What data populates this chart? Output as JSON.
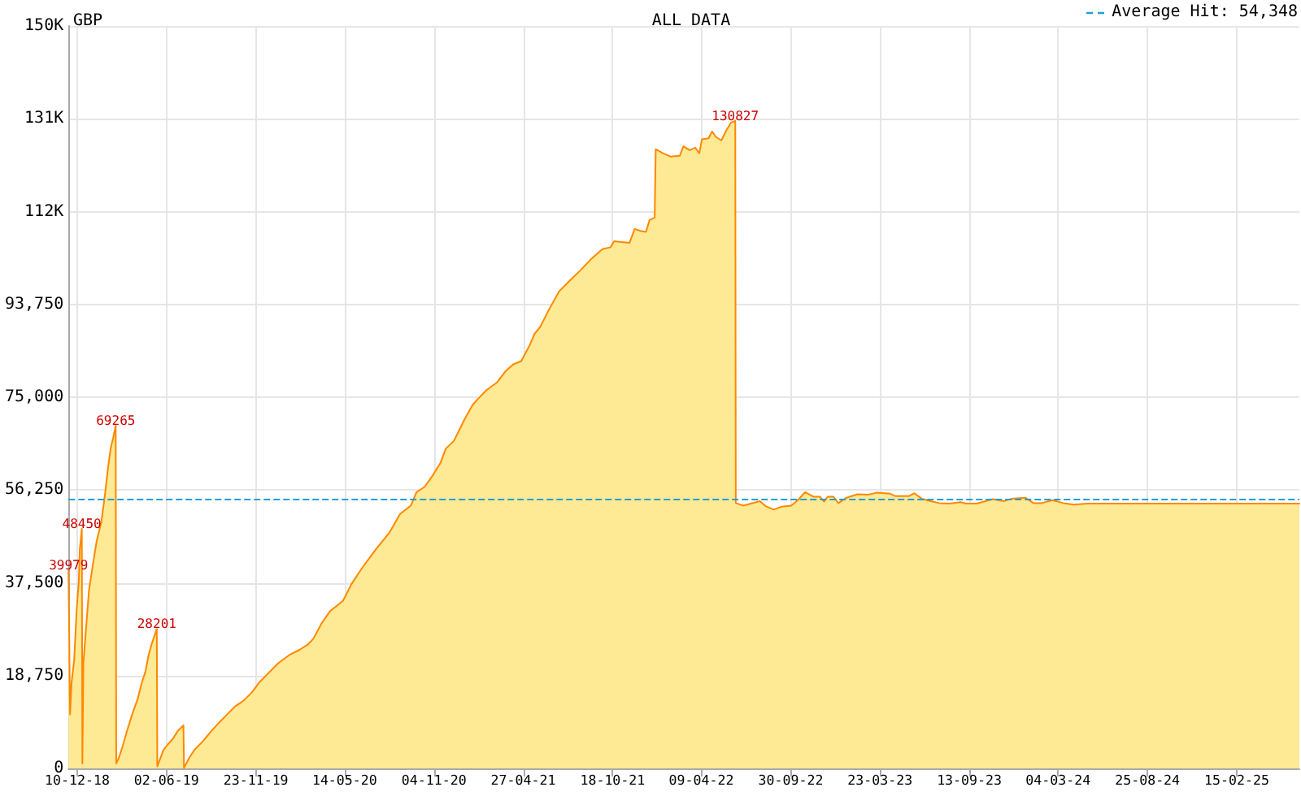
{
  "chart_data": {
    "type": "area",
    "title": "GBP",
    "subtitle": "ALL DATA",
    "x": [
      "2018-11-23",
      "2018-11-26",
      "2018-11-29",
      "2018-12-04",
      "2018-12-09",
      "2018-12-13",
      "2018-12-15",
      "2018-12-19",
      "2018-12-20",
      "2018-12-22",
      "2019-01-02",
      "2019-01-10",
      "2019-01-17",
      "2019-01-26",
      "2019-02-02",
      "2019-02-08",
      "2019-02-13",
      "2019-02-18",
      "2019-02-23",
      "2019-02-24",
      "2019-03-01",
      "2019-03-08",
      "2019-03-17",
      "2019-03-27",
      "2019-04-07",
      "2019-04-15",
      "2019-04-22",
      "2019-04-28",
      "2019-05-04",
      "2019-05-14",
      "2019-05-15",
      "2019-05-19",
      "2019-05-27",
      "2019-06-04",
      "2019-06-14",
      "2019-06-24",
      "2019-07-05",
      "2019-07-06",
      "2019-07-16",
      "2019-07-26",
      "2019-08-11",
      "2019-08-27",
      "2019-09-12",
      "2019-09-28",
      "2019-10-13",
      "2019-10-29",
      "2019-11-14",
      "2019-11-30",
      "2019-12-16",
      "2020-01-06",
      "2020-01-27",
      "2020-02-17",
      "2020-03-04",
      "2020-03-14",
      "2020-03-30",
      "2020-04-15",
      "2020-05-11",
      "2020-05-27",
      "2020-06-17",
      "2020-07-14",
      "2020-08-09",
      "2020-08-30",
      "2020-09-20",
      "2020-10-01",
      "2020-10-17",
      "2020-11-01",
      "2020-11-17",
      "2020-11-27",
      "2020-12-13",
      "2021-01-03",
      "2021-01-18",
      "2021-01-29",
      "2021-02-14",
      "2021-03-07",
      "2021-03-23",
      "2021-04-07",
      "2021-04-23",
      "2021-05-09",
      "2021-05-19",
      "2021-05-30",
      "2021-06-15",
      "2021-07-06",
      "2021-07-27",
      "2021-08-17",
      "2021-09-07",
      "2021-09-28",
      "2021-10-14",
      "2021-10-21",
      "2021-11-20",
      "2021-11-30",
      "2021-12-11",
      "2021-12-22",
      "2021-12-29",
      "2022-01-08",
      "2022-01-10",
      "2022-01-24",
      "2022-02-08",
      "2022-02-26",
      "2022-03-05",
      "2022-03-17",
      "2022-03-28",
      "2022-04-05",
      "2022-04-10",
      "2022-04-23",
      "2022-04-30",
      "2022-05-07",
      "2022-05-18",
      "2022-05-28",
      "2022-06-06",
      "2022-06-14",
      "2022-06-15",
      "2022-06-30",
      "2022-08-01",
      "2022-08-12",
      "2022-08-28",
      "2022-09-13",
      "2022-10-01",
      "2022-10-14",
      "2022-10-28",
      "2022-11-13",
      "2022-11-26",
      "2022-12-04",
      "2022-12-11",
      "2022-12-22",
      "2023-01-01",
      "2023-01-17",
      "2023-02-07",
      "2023-02-28",
      "2023-03-16",
      "2023-04-12",
      "2023-04-22",
      "2023-05-18",
      "2023-05-29",
      "2023-06-12",
      "2023-06-30",
      "2023-07-16",
      "2023-08-05",
      "2023-08-27",
      "2023-09-06",
      "2023-09-27",
      "2023-10-29",
      "2023-11-19",
      "2023-12-05",
      "2023-12-31",
      "2024-01-16",
      "2024-02-01",
      "2024-02-22",
      "2024-03-14",
      "2024-04-04",
      "2024-04-30",
      "2025-06-17"
    ],
    "values": [
      39979,
      10900,
      17400,
      21800,
      32200,
      37700,
      44300,
      48450,
      1000,
      21300,
      36100,
      41500,
      46000,
      49800,
      55300,
      60700,
      64600,
      66800,
      69265,
      1000,
      2100,
      4300,
      7600,
      10900,
      14100,
      17400,
      19600,
      22900,
      25100,
      28201,
      400,
      1500,
      3700,
      4800,
      5900,
      7600,
      8700,
      100,
      2100,
      3700,
      5400,
      7400,
      9200,
      10900,
      12500,
      13600,
      15200,
      17400,
      19100,
      21300,
      22900,
      24000,
      25100,
      26200,
      29300,
      31700,
      33900,
      37200,
      40500,
      44300,
      47600,
      51400,
      53100,
      55800,
      56900,
      59100,
      61800,
      64600,
      66200,
      70600,
      73400,
      74700,
      76400,
      78000,
      80200,
      81600,
      82300,
      85400,
      87800,
      89200,
      92500,
      96400,
      98600,
      100700,
      103000,
      104900,
      105300,
      106500,
      106200,
      109000,
      108600,
      108400,
      110800,
      111300,
      125100,
      124300,
      123600,
      123800,
      125700,
      124900,
      125400,
      124300,
      127100,
      127300,
      128700,
      127600,
      126900,
      129000,
      130500,
      130827,
      53600,
      53100,
      54000,
      53000,
      52300,
      52900,
      53100,
      54200,
      55800,
      54900,
      54900,
      53900,
      54900,
      54900,
      53600,
      54700,
      55400,
      55300,
      55700,
      55500,
      55000,
      55000,
      55600,
      54500,
      54000,
      53600,
      53500,
      53800,
      53500,
      53500,
      54400,
      54000,
      54500,
      54700,
      53600,
      53600,
      54200,
      53600,
      53300,
      53500,
      53500
    ],
    "value_labels": [
      "39979",
      null,
      null,
      null,
      null,
      null,
      null,
      "48450",
      null,
      null,
      null,
      null,
      null,
      null,
      null,
      null,
      null,
      null,
      "69265",
      null,
      null,
      null,
      null,
      null,
      null,
      null,
      null,
      null,
      null,
      "28201",
      null,
      null,
      null,
      null,
      null,
      null,
      null,
      null,
      null,
      null,
      null,
      null,
      null,
      null,
      null,
      null,
      null,
      null,
      null,
      null,
      null,
      null,
      null,
      null,
      null,
      null,
      null,
      null,
      null,
      null,
      null,
      null,
      null,
      null,
      null,
      null,
      null,
      null,
      null,
      null,
      null,
      null,
      null,
      null,
      null,
      null,
      null,
      null,
      null,
      null,
      null,
      null,
      null,
      null,
      null,
      null,
      null,
      null,
      null,
      null,
      null,
      null,
      null,
      null,
      null,
      null,
      null,
      null,
      null,
      null,
      null,
      null,
      null,
      null,
      null,
      null,
      null,
      null,
      null,
      "130827",
      null,
      null,
      null,
      null,
      null,
      null,
      null,
      null,
      null,
      null,
      null,
      null,
      null,
      null,
      null,
      null,
      null,
      null,
      null,
      null,
      null,
      null,
      null,
      null,
      null,
      null,
      null,
      null,
      null,
      null,
      null,
      null,
      null,
      null,
      null,
      null,
      null,
      null,
      null,
      null,
      null
    ],
    "color": "#ff8800",
    "xlim": [
      "2018-11-23",
      "2025-06-17"
    ],
    "xticks": [
      {
        "value": "2018-12-10",
        "label": "10-12-18"
      },
      {
        "value": "2019-06-02",
        "label": "02-06-19"
      },
      {
        "value": "2019-11-23",
        "label": "23-11-19"
      },
      {
        "value": "2020-05-14",
        "label": "14-05-20"
      },
      {
        "value": "2020-11-04",
        "label": "04-11-20"
      },
      {
        "value": "2021-04-27",
        "label": "27-04-21"
      },
      {
        "value": "2021-10-18",
        "label": "18-10-21"
      },
      {
        "value": "2022-04-09",
        "label": "09-04-22"
      },
      {
        "value": "2022-09-30",
        "label": "30-09-22"
      },
      {
        "value": "2023-03-23",
        "label": "23-03-23"
      },
      {
        "value": "2023-09-13",
        "label": "13-09-23"
      },
      {
        "value": "2024-03-04",
        "label": "04-03-24"
      },
      {
        "value": "2024-08-25",
        "label": "25-08-24"
      },
      {
        "value": "2025-02-15",
        "label": "15-02-25"
      }
    ],
    "ylim": [
      0,
      150000
    ],
    "yticks": [
      0,
      {
        "value": 18750,
        "label": "18,750"
      },
      {
        "value": 37500,
        "label": "37,500"
      },
      {
        "value": 56250,
        "label": "56,250"
      },
      {
        "value": 75000,
        "label": "75,000"
      },
      {
        "value": 93750,
        "label": "93,750"
      },
      {
        "value": 112500,
        "label": "112K"
      },
      {
        "value": 131250,
        "label": "131K"
      },
      {
        "value": 150000,
        "label": "150K"
      }
    ],
    "ref_lines": [
      {
        "axis": "y",
        "value": 54348,
        "label": "Average Hit: 54,348",
        "color": "#1e9fd6",
        "line_style": "dashed"
      }
    ],
    "grid": true
  }
}
